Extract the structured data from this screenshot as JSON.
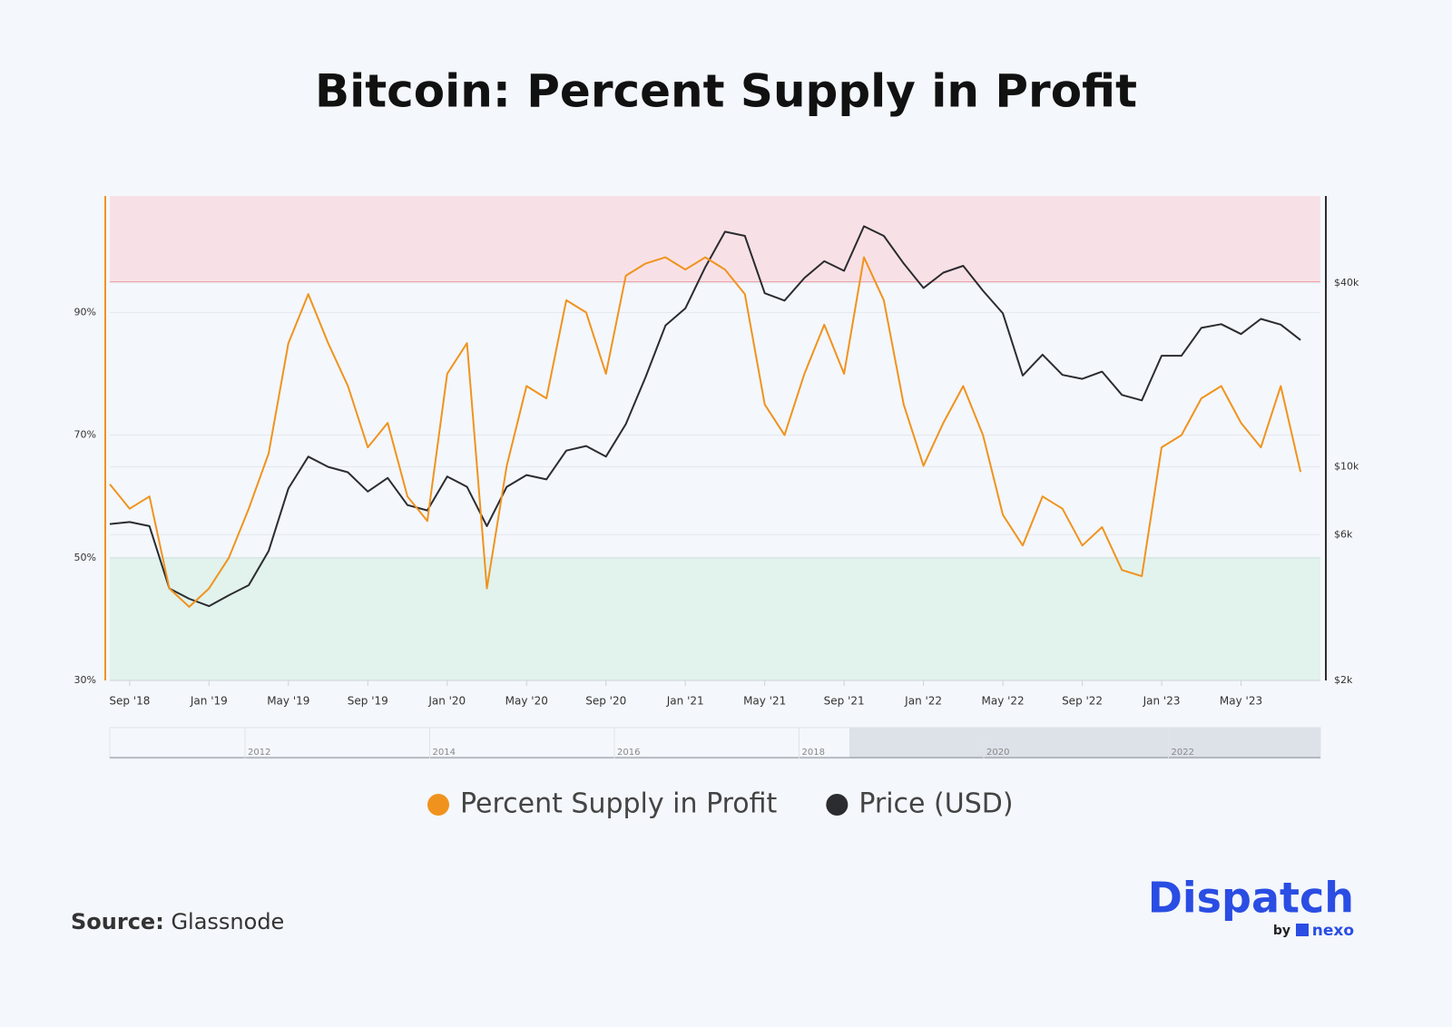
{
  "chart_data": {
    "type": "line",
    "title": "Bitcoin: Percent Supply in Profit",
    "x": [
      "2018-08",
      "2018-09",
      "2018-10",
      "2018-11",
      "2018-12",
      "2019-01",
      "2019-02",
      "2019-03",
      "2019-04",
      "2019-05",
      "2019-06",
      "2019-07",
      "2019-08",
      "2019-09",
      "2019-10",
      "2019-11",
      "2019-12",
      "2020-01",
      "2020-02",
      "2020-03",
      "2020-04",
      "2020-05",
      "2020-06",
      "2020-07",
      "2020-08",
      "2020-09",
      "2020-10",
      "2020-11",
      "2020-12",
      "2021-01",
      "2021-02",
      "2021-03",
      "2021-04",
      "2021-05",
      "2021-06",
      "2021-07",
      "2021-08",
      "2021-09",
      "2021-10",
      "2021-11",
      "2021-12",
      "2022-01",
      "2022-02",
      "2022-03",
      "2022-04",
      "2022-05",
      "2022-06",
      "2022-07",
      "2022-08",
      "2022-09",
      "2022-10",
      "2022-11",
      "2022-12",
      "2023-01",
      "2023-02",
      "2023-03",
      "2023-04",
      "2023-05",
      "2023-06",
      "2023-07",
      "2023-08"
    ],
    "series": [
      {
        "name": "Percent Supply in Profit",
        "color": "#f0931e",
        "axis": "y",
        "values": [
          62,
          58,
          60,
          45,
          42,
          45,
          50,
          58,
          67,
          85,
          93,
          85,
          78,
          68,
          72,
          60,
          56,
          80,
          85,
          45,
          65,
          78,
          76,
          92,
          90,
          80,
          96,
          98,
          99,
          97,
          99,
          97,
          93,
          75,
          70,
          80,
          88,
          80,
          99,
          92,
          75,
          65,
          72,
          78,
          70,
          57,
          52,
          60,
          58,
          52,
          55,
          48,
          47,
          68,
          70,
          76,
          78,
          72,
          68,
          78,
          64
        ]
      },
      {
        "name": "Price (USD)",
        "color": "#2a2c30",
        "axis": "y2",
        "values": [
          6500,
          6600,
          6400,
          4000,
          3700,
          3500,
          3800,
          4100,
          5300,
          8500,
          10800,
          10000,
          9600,
          8300,
          9200,
          7500,
          7200,
          9300,
          8600,
          6400,
          8600,
          9400,
          9100,
          11300,
          11700,
          10800,
          13800,
          19700,
          29000,
          33000,
          45000,
          58800,
          57000,
          37000,
          35000,
          41500,
          47100,
          43800,
          61300,
          57000,
          46300,
          38500,
          43200,
          45500,
          37700,
          31800,
          19900,
          23300,
          20000,
          19400,
          20500,
          17200,
          16500,
          23100,
          23100,
          28500,
          29300,
          27200,
          30500,
          29200,
          26000
        ]
      }
    ],
    "xlim": [
      "2018-08",
      "2023-09"
    ],
    "xticks": [
      {
        "value": "2018-09",
        "label": "Sep '18"
      },
      {
        "value": "2019-01",
        "label": "Jan '19"
      },
      {
        "value": "2019-05",
        "label": "May '19"
      },
      {
        "value": "2019-09",
        "label": "Sep '19"
      },
      {
        "value": "2020-01",
        "label": "Jan '20"
      },
      {
        "value": "2020-05",
        "label": "May '20"
      },
      {
        "value": "2020-09",
        "label": "Sep '20"
      },
      {
        "value": "2021-01",
        "label": "Jan '21"
      },
      {
        "value": "2021-05",
        "label": "May '21"
      },
      {
        "value": "2021-09",
        "label": "Sep '21"
      },
      {
        "value": "2022-01",
        "label": "Jan '22"
      },
      {
        "value": "2022-05",
        "label": "May '22"
      },
      {
        "value": "2022-09",
        "label": "Sep '22"
      },
      {
        "value": "2023-01",
        "label": "Jan '23"
      },
      {
        "value": "2023-05",
        "label": "May '23"
      }
    ],
    "ylim": [
      30,
      109
    ],
    "yticks": [
      {
        "value": 30,
        "label": "30%"
      },
      {
        "value": 50,
        "label": "50%"
      },
      {
        "value": 70,
        "label": "70%"
      },
      {
        "value": 90,
        "label": "90%"
      }
    ],
    "y2lim": [
      2000,
      77000
    ],
    "y2scale": "log",
    "y2ticks": [
      {
        "value": 2000,
        "label": "$2k"
      },
      {
        "value": 6000,
        "label": "$6k"
      },
      {
        "value": 10000,
        "label": "$10k"
      },
      {
        "value": 40000,
        "label": "$40k"
      }
    ],
    "zones": [
      {
        "from": 95,
        "to": 109,
        "color": "#f8e1e6",
        "edge": "#ef9a9a"
      },
      {
        "from": 30,
        "to": 50,
        "color": "#e2f2ec",
        "edge": "#93d0b0"
      }
    ],
    "grid": true,
    "navigator_labels": [
      "2012",
      "2014",
      "2016",
      "2018",
      "2020",
      "2022"
    ]
  },
  "source": {
    "label": "Source:",
    "text": "Glassnode"
  },
  "brand": {
    "name": "Dispatch",
    "by": "by",
    "partner": "nexo"
  }
}
